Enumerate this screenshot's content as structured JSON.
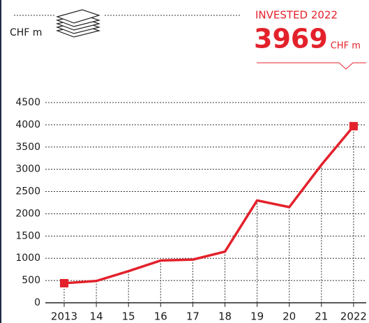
{
  "chart_data": {
    "type": "line",
    "unit_label": "CHF m",
    "annotation": "INVESTED 2022",
    "annotation_unit": "CHF m",
    "categories": [
      "2013",
      "14",
      "15",
      "16",
      "17",
      "18",
      "19",
      "20",
      "21",
      "2022"
    ],
    "series": [
      {
        "name": "Invested",
        "color": "#e3212b",
        "values": [
          440,
          490,
          710,
          950,
          970,
          1150,
          2300,
          2150,
          3100,
          3969
        ]
      }
    ],
    "ylim": [
      0,
      4500
    ],
    "yticks": [
      0,
      500,
      1000,
      1500,
      2000,
      2500,
      3000,
      3500,
      4000,
      4500
    ],
    "grid": true
  }
}
